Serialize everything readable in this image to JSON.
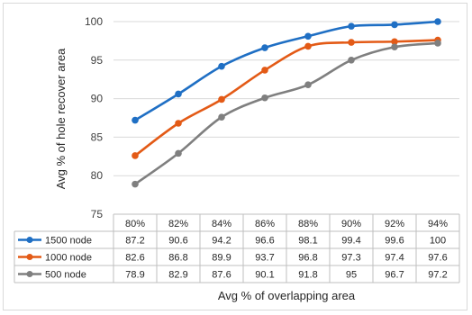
{
  "chart_data": {
    "type": "line",
    "x": [
      "80%",
      "82%",
      "84%",
      "86%",
      "88%",
      "90%",
      "92%",
      "94%"
    ],
    "series": [
      {
        "name": "1500 node",
        "color": "#1f6fc4",
        "values": [
          "87.2",
          "90.6",
          "94.2",
          "96.6",
          "98.1",
          "99.4",
          "99.6",
          "100"
        ]
      },
      {
        "name": "1000 node",
        "color": "#e35a16",
        "values": [
          "82.6",
          "86.8",
          "89.9",
          "93.7",
          "96.8",
          "97.3",
          "97.4",
          "97.6"
        ]
      },
      {
        "name": "500 node",
        "color": "#7f7f7f",
        "values": [
          "78.9",
          "82.9",
          "87.6",
          "90.1",
          "91.8",
          "95",
          "96.7",
          "97.2"
        ]
      }
    ],
    "xlabel": "Avg % of overlapping area",
    "ylabel": "Avg % of hole recover area",
    "ylim": [
      75,
      100
    ],
    "yticks": [
      "75",
      "80",
      "85",
      "90",
      "95",
      "100"
    ],
    "grid": "horizontal",
    "legend": "data-table"
  }
}
